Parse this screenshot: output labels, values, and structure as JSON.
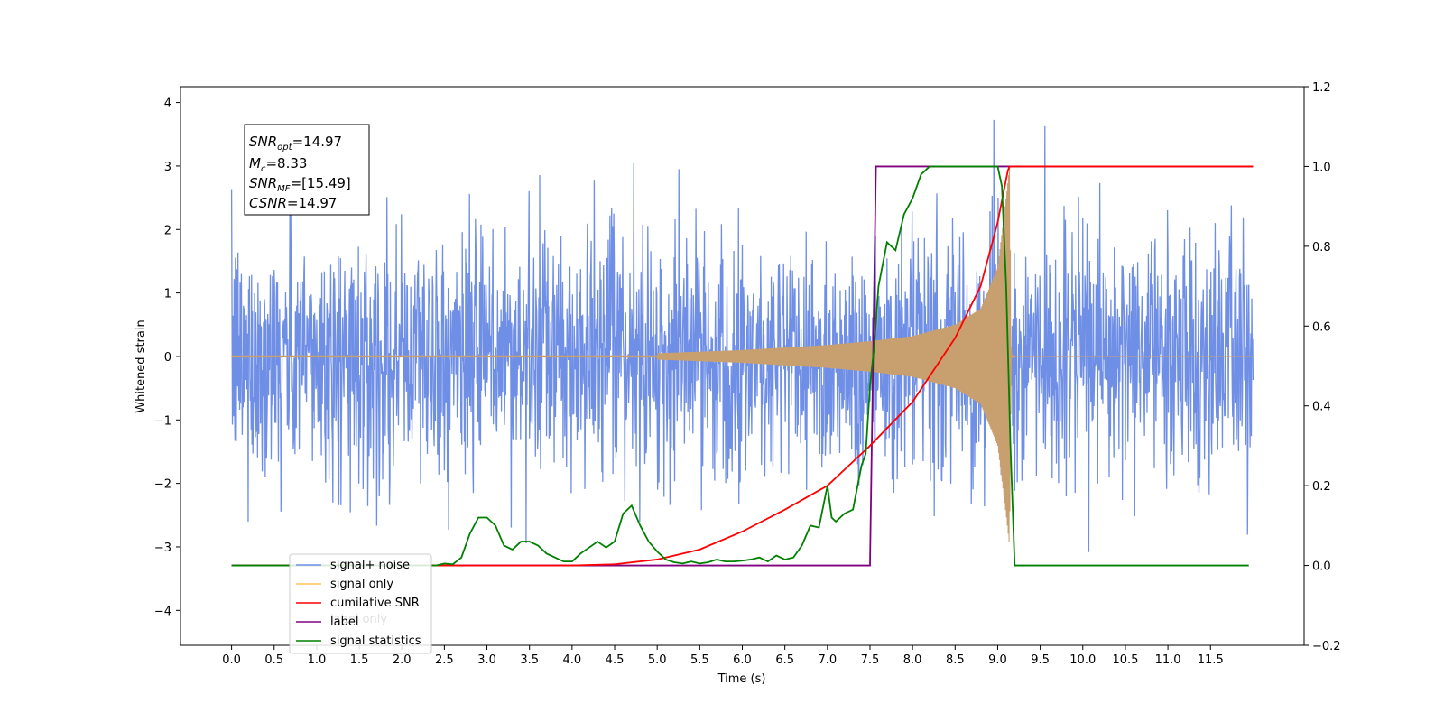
{
  "chart_data": {
    "type": "line",
    "xlabel": "Time (s)",
    "ylabel": "Whitened strain",
    "x_ticks": [
      "0.0",
      "0.5",
      "1.0",
      "1.5",
      "2.0",
      "2.5",
      "3.0",
      "3.5",
      "4.0",
      "4.5",
      "5.0",
      "5.5",
      "6.0",
      "6.5",
      "7.0",
      "7.5",
      "8.0",
      "8.5",
      "9.0",
      "9.5",
      "10.0",
      "10.5",
      "11.0",
      "11.5"
    ],
    "xlim": [
      -0.6,
      12.6
    ],
    "ylim_left": [
      -4.55,
      4.25
    ],
    "y_ticks_left": [
      "4",
      "3",
      "2",
      "1",
      "0",
      "−1",
      "−2",
      "−3",
      "−4"
    ],
    "ylim_right": [
      -0.2,
      1.2
    ],
    "y_ticks_right": [
      "1.2",
      "1.0",
      "0.8",
      "0.6",
      "0.4",
      "0.2",
      "0.0",
      "−0.2"
    ],
    "annotation": {
      "snr_opt": {
        "base": "SNR",
        "sub": "opt",
        "value": "=14.97"
      },
      "mc": {
        "base": "M",
        "sub": "c",
        "value": "=8.33"
      },
      "snr_mf": {
        "base": "SNR",
        "sub": "MF",
        "value": "=[15.49]"
      },
      "csnr": {
        "base": "CSNR",
        "value": "=14.97"
      }
    },
    "legend": {
      "location": "lower-left",
      "entries": [
        "signal+ noise",
        "signal only",
        "cumilative SNR",
        "label",
        "signal statistics"
      ],
      "ghost_text": "label only"
    },
    "series": [
      {
        "name": "signal+ noise",
        "axis": "left",
        "color": "#6f8fe6",
        "description_range": [
          -3.4,
          3.9
        ],
        "x_range": [
          0.0,
          12.0
        ],
        "noise_std": 0.95
      },
      {
        "name": "signal only",
        "axis": "left",
        "color": "#c8a070",
        "x_range": [
          0.0,
          9.2
        ],
        "envelope": [
          [
            5.0,
            0.05
          ],
          [
            6.0,
            0.1
          ],
          [
            7.0,
            0.18
          ],
          [
            7.5,
            0.24
          ],
          [
            8.0,
            0.32
          ],
          [
            8.5,
            0.5
          ],
          [
            8.8,
            0.75
          ],
          [
            9.0,
            1.4
          ],
          [
            9.1,
            2.5
          ],
          [
            9.14,
            3.0
          ],
          [
            9.16,
            0.02
          ]
        ]
      },
      {
        "name": "cumilative SNR",
        "axis": "right",
        "color": "#ff0000",
        "x": [
          0.0,
          4.0,
          4.5,
          5.0,
          5.5,
          6.0,
          6.5,
          7.0,
          7.5,
          8.0,
          8.5,
          8.8,
          9.0,
          9.12,
          9.14,
          12.0
        ],
        "y": [
          0.0,
          0.0,
          0.003,
          0.015,
          0.04,
          0.085,
          0.14,
          0.2,
          0.3,
          0.41,
          0.57,
          0.7,
          0.86,
          0.99,
          1.0,
          1.0
        ]
      },
      {
        "name": "label",
        "axis": "right",
        "color": "#800080",
        "x": [
          0.0,
          7.5,
          7.57,
          9.12,
          9.14,
          12.0
        ],
        "y": [
          0.0,
          0.0,
          1.0,
          1.0,
          1.0,
          1.0
        ]
      },
      {
        "name": "signal statistics",
        "axis": "right",
        "color": "#008000",
        "x": [
          0.0,
          2.4,
          2.5,
          2.6,
          2.7,
          2.8,
          2.9,
          3.0,
          3.1,
          3.2,
          3.3,
          3.4,
          3.5,
          3.6,
          3.7,
          3.8,
          3.9,
          4.0,
          4.1,
          4.2,
          4.3,
          4.4,
          4.5,
          4.6,
          4.7,
          4.8,
          4.9,
          5.0,
          5.1,
          5.2,
          5.3,
          5.4,
          5.5,
          5.6,
          5.7,
          5.8,
          5.9,
          6.0,
          6.1,
          6.2,
          6.3,
          6.4,
          6.5,
          6.6,
          6.7,
          6.8,
          6.9,
          7.0,
          7.05,
          7.1,
          7.2,
          7.3,
          7.4,
          7.45,
          7.5,
          7.55,
          7.6,
          7.7,
          7.8,
          7.9,
          8.0,
          8.1,
          8.2,
          8.3,
          8.5,
          9.0,
          9.05,
          9.1,
          9.15,
          9.2,
          11.95
        ],
        "y": [
          0.0,
          0.0,
          0.005,
          0.003,
          0.02,
          0.08,
          0.12,
          0.12,
          0.1,
          0.05,
          0.04,
          0.06,
          0.06,
          0.05,
          0.03,
          0.02,
          0.01,
          0.01,
          0.03,
          0.045,
          0.06,
          0.045,
          0.06,
          0.13,
          0.15,
          0.1,
          0.06,
          0.035,
          0.015,
          0.008,
          0.005,
          0.01,
          0.005,
          0.008,
          0.015,
          0.01,
          0.01,
          0.012,
          0.015,
          0.02,
          0.01,
          0.025,
          0.015,
          0.02,
          0.05,
          0.1,
          0.095,
          0.2,
          0.12,
          0.11,
          0.13,
          0.14,
          0.25,
          0.28,
          0.45,
          0.55,
          0.7,
          0.81,
          0.79,
          0.88,
          0.92,
          0.98,
          1.0,
          1.0,
          1.0,
          1.0,
          0.95,
          0.7,
          0.3,
          0.0,
          0.0
        ]
      }
    ]
  }
}
